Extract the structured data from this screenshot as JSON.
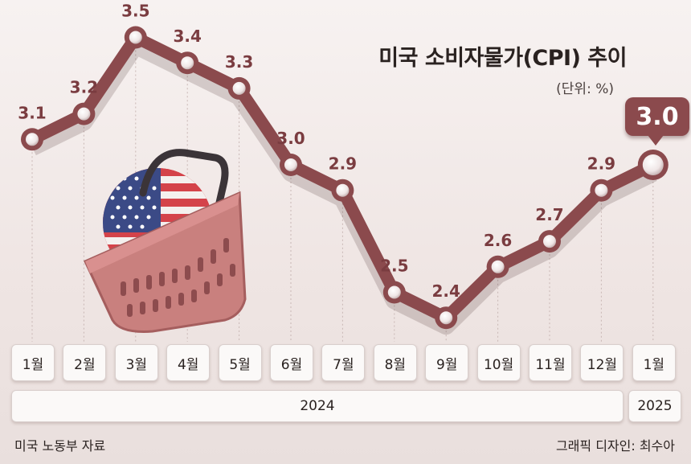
{
  "title": "미국 소비자물가(CPI) 추이",
  "unit": "(단위: %)",
  "source": "미국 노동부 자료",
  "credit": "그래픽 디자인: 최수아",
  "colors": {
    "line": "#8b4a4d",
    "label": "#7a3c40",
    "dot": "#f3eeee"
  },
  "illustration": "shopping-basket-with-us-flag-icon",
  "callout": "3.0",
  "years": [
    "2024",
    "2025"
  ],
  "chart_data": {
    "type": "line",
    "categories": [
      "1월",
      "2월",
      "3월",
      "4월",
      "5월",
      "6월",
      "7월",
      "8월",
      "9월",
      "10월",
      "11월",
      "12월",
      "1월"
    ],
    "series": [
      {
        "values": [
          3.1,
          3.2,
          3.5,
          3.4,
          3.3,
          3.0,
          2.9,
          2.5,
          2.4,
          2.6,
          2.7,
          2.9,
          3.0
        ]
      }
    ],
    "labels": [
      "3.1",
      "3.2",
      "3.5",
      "3.4",
      "3.3",
      "3.0",
      "2.9",
      "2.5",
      "2.4",
      "2.6",
      "2.7",
      "2.9",
      "3.0"
    ],
    "title": "미국 소비자물가(CPI) 추이",
    "ylabel": "(단위: %)",
    "grid": "vertical dotted lines"
  }
}
